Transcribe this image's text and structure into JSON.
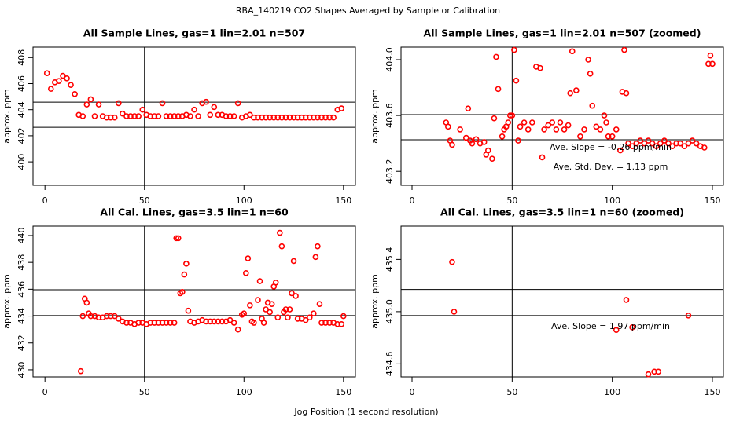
{
  "title": "RBA_140219  CO2 Shapes Averaged by Sample or Calibration",
  "xlabel": "Jog Position (1 second resolution)",
  "chart_data": [
    {
      "type": "scatter",
      "title": "All Sample Lines, gas=1 lin=2.01 n=507",
      "ylabel": "approx. ppm",
      "color": "#ff0000",
      "xlim": [
        -6,
        156
      ],
      "ylim": [
        398.2,
        408.8
      ],
      "xticks": [
        0,
        50,
        100,
        150
      ],
      "yticks": [
        400,
        402,
        404,
        406,
        408
      ],
      "vlines": [
        50
      ],
      "hlines": [
        404.58,
        402.65
      ],
      "annotations": [],
      "x": [
        1,
        3,
        5,
        7,
        9,
        11,
        13,
        15,
        17,
        19,
        21,
        23,
        25,
        27,
        29,
        31,
        33,
        35,
        37,
        39,
        41,
        43,
        45,
        47,
        49,
        51,
        53,
        55,
        57,
        59,
        61,
        63,
        65,
        67,
        69,
        71,
        73,
        75,
        77,
        79,
        81,
        83,
        85,
        87,
        89,
        91,
        93,
        95,
        97,
        99,
        101,
        103,
        105,
        107,
        109,
        111,
        113,
        115,
        117,
        119,
        121,
        123,
        125,
        127,
        129,
        131,
        133,
        135,
        137,
        139,
        141,
        143,
        145,
        147,
        149
      ],
      "values": [
        406.8,
        405.6,
        406.1,
        406.2,
        406.6,
        406.4,
        405.9,
        405.2,
        403.6,
        403.5,
        404.4,
        404.8,
        403.5,
        404.4,
        403.5,
        403.4,
        403.4,
        403.4,
        404.5,
        403.7,
        403.5,
        403.5,
        403.5,
        403.5,
        404.0,
        403.6,
        403.5,
        403.5,
        403.5,
        404.5,
        403.5,
        403.5,
        403.5,
        403.5,
        403.5,
        403.6,
        403.5,
        404.0,
        403.5,
        404.5,
        404.6,
        403.6,
        404.2,
        403.6,
        403.6,
        403.5,
        403.5,
        403.5,
        404.5,
        403.4,
        403.5,
        403.6,
        403.4,
        403.4,
        403.4,
        403.4,
        403.4,
        403.4,
        403.4,
        403.4,
        403.4,
        403.4,
        403.4,
        403.4,
        403.4,
        403.4,
        403.4,
        403.4,
        403.4,
        403.4,
        403.4,
        403.4,
        403.4,
        404.0,
        404.1
      ]
    },
    {
      "type": "scatter",
      "title": "All Sample Lines, gas=1 lin=2.01 n=507 (zoomed)",
      "ylabel": "approx. ppm",
      "color": "#ff0000",
      "xlim": [
        -5.5,
        155.5
      ],
      "ylim": [
        403.1,
        404.09
      ],
      "xticks": [
        0,
        50,
        100,
        150
      ],
      "yticks": [
        403.2,
        403.6,
        {
          "value": 404,
          "label": "404.0"
        }
      ],
      "vlines": [
        50
      ],
      "hlines": [
        403.606,
        403.426
      ],
      "annotations": [
        "Ave. Slope =  -0.26  ppm/min",
        "Ave. Std. Dev. =  1.13  ppm"
      ],
      "x": [
        17,
        18,
        19,
        20,
        24,
        27,
        28,
        29,
        30,
        32,
        34,
        36,
        37,
        38,
        40,
        41,
        42,
        43,
        45,
        46,
        47,
        48,
        49,
        50,
        51,
        52,
        53,
        54,
        56,
        58,
        60,
        62,
        64,
        65,
        66,
        68,
        70,
        72,
        74,
        76,
        78,
        79,
        80,
        82,
        84,
        86,
        88,
        89,
        90,
        92,
        94,
        96,
        97,
        98,
        100,
        102,
        104,
        105,
        106,
        107,
        108,
        110,
        112,
        114,
        116,
        118,
        120,
        122,
        124,
        126,
        128,
        130,
        132,
        134,
        136,
        138,
        140,
        142,
        144,
        146,
        148,
        149,
        150
      ],
      "values": [
        403.55,
        403.52,
        403.42,
        403.39,
        403.5,
        403.44,
        403.65,
        403.42,
        403.4,
        403.43,
        403.4,
        403.41,
        403.32,
        403.35,
        403.29,
        403.58,
        404.02,
        403.79,
        403.45,
        403.5,
        403.52,
        403.55,
        403.6,
        403.6,
        404.07,
        403.85,
        403.42,
        403.52,
        403.55,
        403.5,
        403.55,
        403.95,
        403.94,
        403.3,
        403.5,
        403.53,
        403.55,
        403.5,
        403.55,
        403.5,
        403.53,
        403.76,
        404.06,
        403.78,
        403.45,
        403.5,
        404.0,
        403.9,
        403.67,
        403.52,
        403.5,
        403.6,
        403.55,
        403.45,
        403.45,
        403.5,
        403.35,
        403.77,
        404.07,
        403.76,
        403.4,
        403.38,
        403.4,
        403.42,
        403.4,
        403.42,
        403.4,
        403.38,
        403.4,
        403.42,
        403.4,
        403.38,
        403.4,
        403.4,
        403.38,
        403.4,
        403.42,
        403.4,
        403.38,
        403.37,
        403.97,
        404.03,
        403.97
      ]
    },
    {
      "type": "scatter",
      "title": "All Cal. Lines, gas=3.5 lin=1 n=60",
      "ylabel": "approx. ppm",
      "color": "#ff0000",
      "xlim": [
        -6,
        156
      ],
      "ylim": [
        429.47,
        440.7
      ],
      "xticks": [
        0,
        50,
        100,
        150
      ],
      "yticks": [
        430,
        432,
        434,
        436,
        438,
        440
      ],
      "vlines": [
        50
      ],
      "hlines": [
        435.96,
        434.04
      ],
      "annotations": [],
      "x": [
        18,
        19,
        20,
        21,
        22,
        23,
        25,
        27,
        29,
        31,
        33,
        35,
        37,
        39,
        41,
        43,
        45,
        47,
        49,
        51,
        53,
        55,
        57,
        59,
        61,
        63,
        65,
        66,
        67,
        68,
        69,
        70,
        71,
        72,
        73,
        75,
        77,
        79,
        81,
        83,
        85,
        87,
        89,
        91,
        93,
        95,
        97,
        99,
        100,
        101,
        102,
        103,
        104,
        105,
        107,
        108,
        109,
        110,
        111,
        112,
        113,
        114,
        115,
        116,
        117,
        118,
        119,
        120,
        121,
        122,
        123,
        124,
        125,
        126,
        127,
        129,
        131,
        133,
        135,
        136,
        137,
        138,
        139,
        141,
        143,
        145,
        147,
        149,
        150
      ],
      "values": [
        429.9,
        434,
        435.3,
        435,
        434.2,
        434,
        434,
        433.9,
        433.9,
        434,
        434,
        434,
        433.8,
        433.6,
        433.5,
        433.5,
        433.4,
        433.5,
        433.5,
        433.4,
        433.5,
        433.5,
        433.5,
        433.5,
        433.5,
        433.5,
        433.5,
        439.8,
        439.8,
        435.7,
        435.8,
        437.1,
        437.9,
        434.4,
        433.6,
        433.5,
        433.6,
        433.7,
        433.6,
        433.6,
        433.6,
        433.6,
        433.6,
        433.6,
        433.7,
        433.5,
        433.0,
        434.1,
        434.2,
        437.2,
        438.3,
        434.8,
        433.6,
        433.5,
        435.2,
        436.6,
        433.8,
        433.5,
        434.5,
        435.0,
        434.3,
        434.9,
        436.2,
        436.5,
        433.9,
        440.2,
        439.2,
        434.3,
        434.5,
        433.9,
        434.5,
        435.7,
        438.1,
        435.5,
        433.8,
        433.8,
        433.7,
        433.9,
        434.2,
        438.4,
        439.2,
        434.9,
        433.5,
        433.5,
        433.5,
        433.5,
        433.4,
        433.4,
        434
      ]
    },
    {
      "type": "scatter",
      "title": "All Cal. Lines, gas=3.5 lin=1 n=60 (zoomed)",
      "ylabel": "approx. ppm",
      "color": "#ff0000",
      "xlim": [
        -5.5,
        155.5
      ],
      "ylim": [
        434.5,
        435.655
      ],
      "xticks": [
        0,
        50,
        100,
        150
      ],
      "yticks": [
        434.6,
        {
          "value": 435,
          "label": "435.0"
        },
        435.4
      ],
      "vlines": [
        50
      ],
      "hlines": [
        435.17,
        434.97
      ],
      "annotations": [
        "Ave. Slope =  1.97  ppm/min"
      ],
      "x": [
        20,
        21,
        102,
        107,
        110,
        118,
        121,
        123,
        138
      ],
      "values": [
        435.38,
        435.0,
        434.86,
        435.09,
        434.88,
        434.52,
        434.54,
        434.54,
        434.97
      ]
    }
  ]
}
